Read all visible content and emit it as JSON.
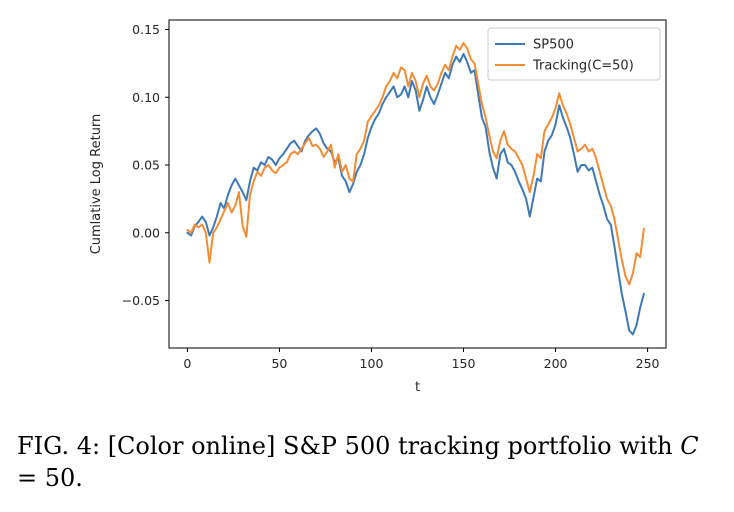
{
  "chart_data": {
    "type": "line",
    "title": "",
    "xlabel": "t",
    "ylabel": "Cumlative Log Return",
    "xlim": [
      -10,
      260
    ],
    "ylim": [
      -0.085,
      0.157
    ],
    "xticks": [
      0,
      50,
      100,
      150,
      200,
      250
    ],
    "xtick_labels": [
      "0",
      "50",
      "100",
      "150",
      "200",
      "250"
    ],
    "yticks": [
      -0.05,
      0.0,
      0.05,
      0.1,
      0.15
    ],
    "ytick_labels": [
      "−0.05",
      "0.00",
      "0.05",
      "0.10",
      "0.15"
    ],
    "grid": false,
    "legend_position": "top-right",
    "series": [
      {
        "name": "SP500",
        "color": "#3f79b5",
        "x": [
          0,
          2,
          4,
          6,
          8,
          10,
          12,
          14,
          16,
          18,
          20,
          22,
          24,
          26,
          28,
          30,
          32,
          34,
          36,
          38,
          40,
          42,
          44,
          46,
          48,
          50,
          52,
          54,
          56,
          58,
          60,
          62,
          64,
          66,
          68,
          70,
          72,
          74,
          76,
          78,
          80,
          82,
          84,
          86,
          88,
          90,
          92,
          94,
          96,
          98,
          100,
          102,
          104,
          106,
          108,
          110,
          112,
          114,
          116,
          118,
          120,
          122,
          124,
          126,
          128,
          130,
          132,
          134,
          136,
          138,
          140,
          142,
          144,
          146,
          148,
          150,
          152,
          154,
          156,
          158,
          160,
          162,
          164,
          166,
          168,
          170,
          172,
          174,
          176,
          178,
          180,
          182,
          184,
          186,
          188,
          190,
          192,
          194,
          196,
          198,
          200,
          202,
          204,
          206,
          208,
          210,
          212,
          214,
          216,
          218,
          220,
          222,
          224,
          226,
          228,
          230,
          232,
          234,
          236,
          238,
          240,
          242,
          244,
          246,
          248
        ],
        "y": [
          0.0,
          -0.002,
          0.005,
          0.008,
          0.012,
          0.008,
          -0.002,
          0.004,
          0.012,
          0.022,
          0.018,
          0.028,
          0.035,
          0.04,
          0.035,
          0.03,
          0.024,
          0.038,
          0.048,
          0.046,
          0.052,
          0.05,
          0.056,
          0.054,
          0.05,
          0.055,
          0.058,
          0.062,
          0.066,
          0.068,
          0.064,
          0.06,
          0.068,
          0.072,
          0.075,
          0.077,
          0.073,
          0.066,
          0.062,
          0.06,
          0.052,
          0.055,
          0.042,
          0.038,
          0.03,
          0.036,
          0.045,
          0.05,
          0.058,
          0.07,
          0.078,
          0.084,
          0.088,
          0.095,
          0.1,
          0.104,
          0.108,
          0.1,
          0.102,
          0.108,
          0.1,
          0.112,
          0.105,
          0.09,
          0.098,
          0.108,
          0.1,
          0.095,
          0.102,
          0.11,
          0.118,
          0.114,
          0.124,
          0.13,
          0.126,
          0.132,
          0.126,
          0.118,
          0.12,
          0.102,
          0.085,
          0.078,
          0.06,
          0.048,
          0.04,
          0.058,
          0.062,
          0.052,
          0.05,
          0.045,
          0.038,
          0.032,
          0.025,
          0.012,
          0.026,
          0.04,
          0.038,
          0.06,
          0.068,
          0.072,
          0.08,
          0.094,
          0.085,
          0.078,
          0.07,
          0.058,
          0.045,
          0.05,
          0.05,
          0.046,
          0.048,
          0.038,
          0.028,
          0.02,
          0.01,
          0.006,
          -0.01,
          -0.028,
          -0.045,
          -0.058,
          -0.072,
          -0.075,
          -0.068,
          -0.055,
          -0.045
        ]
      },
      {
        "name": "Tracking(C=50)",
        "color": "#f28d35",
        "x": [
          0,
          2,
          4,
          6,
          8,
          10,
          12,
          14,
          16,
          18,
          20,
          22,
          24,
          26,
          28,
          30,
          32,
          34,
          36,
          38,
          40,
          42,
          44,
          46,
          48,
          50,
          52,
          54,
          56,
          58,
          60,
          62,
          64,
          66,
          68,
          70,
          72,
          74,
          76,
          78,
          80,
          82,
          84,
          86,
          88,
          90,
          92,
          94,
          96,
          98,
          100,
          102,
          104,
          106,
          108,
          110,
          112,
          114,
          116,
          118,
          120,
          122,
          124,
          126,
          128,
          130,
          132,
          134,
          136,
          138,
          140,
          142,
          144,
          146,
          148,
          150,
          152,
          154,
          156,
          158,
          160,
          162,
          164,
          166,
          168,
          170,
          172,
          174,
          176,
          178,
          180,
          182,
          184,
          186,
          188,
          190,
          192,
          194,
          196,
          198,
          200,
          202,
          204,
          206,
          208,
          210,
          212,
          214,
          216,
          218,
          220,
          222,
          224,
          226,
          228,
          230,
          232,
          234,
          236,
          238,
          240,
          242,
          244,
          246,
          248
        ],
        "y": [
          0.002,
          0.0,
          0.006,
          0.004,
          0.006,
          0.0,
          -0.022,
          0.0,
          0.004,
          0.01,
          0.016,
          0.022,
          0.015,
          0.02,
          0.03,
          0.005,
          -0.003,
          0.028,
          0.038,
          0.045,
          0.042,
          0.048,
          0.05,
          0.046,
          0.044,
          0.048,
          0.05,
          0.052,
          0.058,
          0.06,
          0.058,
          0.062,
          0.066,
          0.07,
          0.064,
          0.065,
          0.062,
          0.056,
          0.06,
          0.065,
          0.048,
          0.058,
          0.045,
          0.05,
          0.04,
          0.038,
          0.058,
          0.062,
          0.068,
          0.082,
          0.086,
          0.09,
          0.094,
          0.1,
          0.108,
          0.112,
          0.118,
          0.114,
          0.122,
          0.12,
          0.108,
          0.118,
          0.112,
          0.1,
          0.11,
          0.116,
          0.108,
          0.105,
          0.11,
          0.118,
          0.124,
          0.12,
          0.13,
          0.138,
          0.135,
          0.14,
          0.136,
          0.128,
          0.125,
          0.11,
          0.095,
          0.085,
          0.072,
          0.06,
          0.055,
          0.068,
          0.075,
          0.065,
          0.062,
          0.06,
          0.055,
          0.05,
          0.04,
          0.03,
          0.042,
          0.058,
          0.055,
          0.075,
          0.08,
          0.085,
          0.092,
          0.103,
          0.094,
          0.088,
          0.08,
          0.07,
          0.06,
          0.062,
          0.065,
          0.06,
          0.062,
          0.055,
          0.045,
          0.035,
          0.025,
          0.02,
          0.01,
          -0.005,
          -0.02,
          -0.032,
          -0.038,
          -0.03,
          -0.015,
          -0.018,
          0.003
        ]
      }
    ]
  },
  "caption": {
    "prefix": "FIG. 4: [Color online] S&P 500 tracking portfolio with ",
    "math_var": "C",
    "math_rest": " = 50."
  }
}
